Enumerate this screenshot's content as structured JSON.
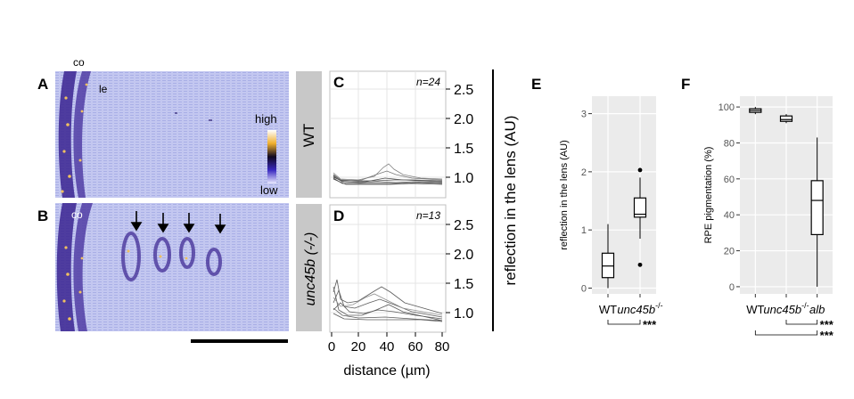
{
  "panels": {
    "A": {
      "letter": "A",
      "label_co": "co",
      "label_le": "le",
      "colorbar_high": "high",
      "colorbar_low": "low"
    },
    "B": {
      "letter": "B",
      "label_co": "co",
      "arrows": 4
    },
    "C": {
      "letter": "C",
      "n_label": "n=24",
      "genotype": "WT"
    },
    "D": {
      "letter": "D",
      "n_label": "n=13",
      "genotype": "unc45b (-/-)"
    },
    "E": {
      "letter": "E"
    },
    "F": {
      "letter": "F"
    }
  },
  "cd_axes": {
    "xlabel": "distance (µm)",
    "ylabel": "reflection in the lens (AU)",
    "xticks": [
      "0",
      "20",
      "40",
      "60",
      "80"
    ],
    "yticks": [
      "1.0",
      "1.5",
      "2.0",
      "2.5"
    ]
  },
  "colors": {
    "oct_bg": "#bfc4ee",
    "oct_dark": "#2a1a6e",
    "oct_hot": "#e8b048",
    "strip_gray": "#c8c8c8"
  },
  "chart_data": [
    {
      "panel": "E",
      "type": "box",
      "ylabel": "reflection in the lens (AU)",
      "categories": [
        "WT",
        "unc45b-/-"
      ],
      "ylim": [
        -0.1,
        3.3
      ],
      "yticks": [
        0,
        1,
        2,
        3
      ],
      "boxes": [
        {
          "name": "WT",
          "min": 0.0,
          "q1": 0.18,
          "median": 0.38,
          "q3": 0.6,
          "max": 1.1,
          "outliers": []
        },
        {
          "name": "unc45b-/-",
          "min": 0.85,
          "q1": 1.22,
          "median": 1.27,
          "q3": 1.55,
          "max": 1.9,
          "outliers": [
            2.03,
            0.4
          ]
        }
      ],
      "significance": [
        {
          "pair": [
            "WT",
            "unc45b-/-"
          ],
          "label": "***"
        }
      ]
    },
    {
      "panel": "F",
      "type": "box",
      "ylabel": "RPE pigmentation (%)",
      "categories": [
        "WT",
        "unc45b-/-",
        "alb"
      ],
      "ylim": [
        -4,
        106
      ],
      "yticks": [
        0,
        20,
        40,
        60,
        80,
        100
      ],
      "boxes": [
        {
          "name": "WT",
          "min": 96,
          "q1": 97,
          "median": 98,
          "q3": 99,
          "max": 100,
          "outliers": []
        },
        {
          "name": "unc45b-/-",
          "min": 91,
          "q1": 92,
          "median": 93,
          "q3": 95,
          "max": 96,
          "outliers": []
        },
        {
          "name": "alb",
          "min": 0,
          "q1": 29,
          "median": 48,
          "q3": 59,
          "max": 83,
          "outliers": []
        }
      ],
      "significance": [
        {
          "pair": [
            "unc45b-/-",
            "alb"
          ],
          "label": "***"
        },
        {
          "pair": [
            "WT",
            "alb"
          ],
          "label": "***"
        }
      ]
    }
  ]
}
